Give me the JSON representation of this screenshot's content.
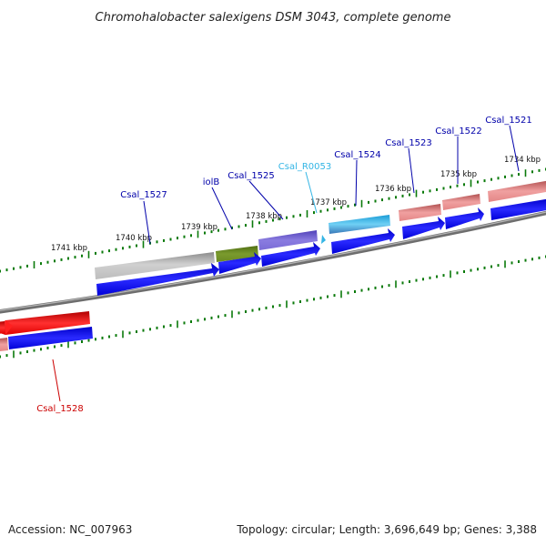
{
  "title": "Chromohalobacter salexigens DSM 3043, complete genome",
  "footer": {
    "accession": "Accession: NC_007963",
    "summary": "Topology: circular; Length: 3,696,649 bp; Genes: 3,388"
  },
  "colors": {
    "label_blue": "#0000aa",
    "label_cyan": "#33b5e5",
    "label_red": "#cc0000",
    "tick_green": "#0a7a0a",
    "backbone": "#777777"
  },
  "tick_labels": [
    "1741 kbp",
    "1740 kbp",
    "1739 kbp",
    "1738 kbp",
    "1737 kbp",
    "1736 kbp",
    "1735 kbp",
    "1734 kbp"
  ],
  "gene_labels": [
    "Csal_1527",
    "iolB",
    "Csal_1525",
    "Csal_R0053",
    "Csal_1524",
    "Csal_1523",
    "Csal_1522",
    "Csal_1521",
    "Csal_1528"
  ]
}
